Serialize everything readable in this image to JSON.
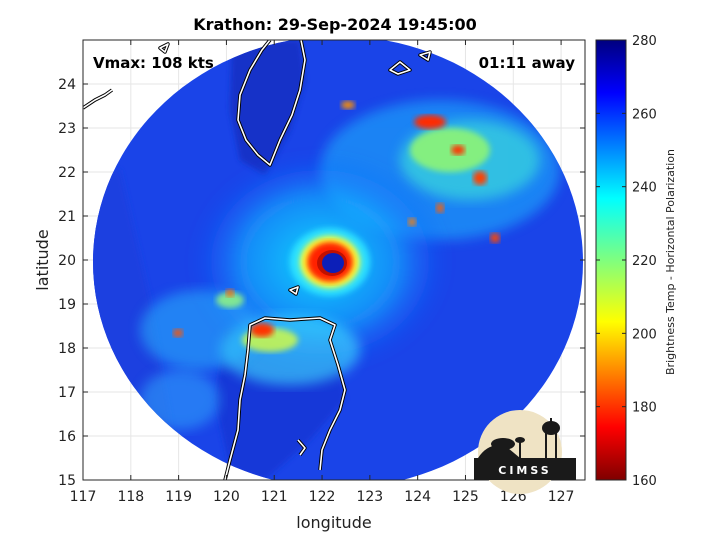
{
  "title": "Krathon: 29-Sep-2024 19:45:00",
  "annotations": {
    "vmax": "Vmax: 108 kts",
    "time_away": "01:11 away"
  },
  "axes": {
    "xlabel": "longitude",
    "ylabel": "latitude",
    "xlim": [
      117,
      127.5
    ],
    "ylim": [
      15,
      25
    ],
    "xticks": [
      "117",
      "118",
      "119",
      "120",
      "121",
      "122",
      "123",
      "124",
      "125",
      "126",
      "127"
    ],
    "yticks": [
      "15",
      "16",
      "17",
      "18",
      "19",
      "20",
      "21",
      "22",
      "23",
      "24"
    ]
  },
  "colorbar": {
    "label": "Brightness Temp - Horizontal Polarization",
    "range": [
      160,
      280
    ],
    "ticks": [
      "280",
      "260",
      "240",
      "220",
      "200",
      "180",
      "160"
    ],
    "colormap": "jet"
  },
  "storm": {
    "eye_lon": 122.3,
    "eye_lat": 19.9
  },
  "logo": {
    "text": "CIMSS"
  }
}
